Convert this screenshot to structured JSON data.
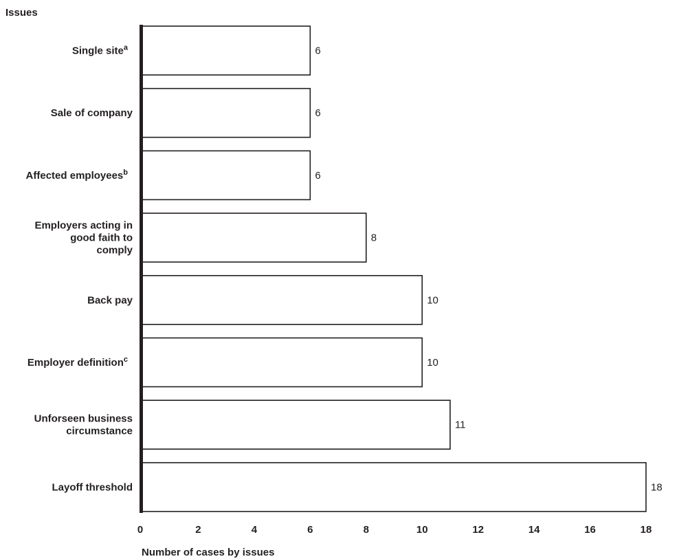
{
  "chart_data": {
    "type": "bar",
    "orientation": "horizontal",
    "title": "Issues",
    "xlabel": "Number of cases by issues",
    "ylabel": "",
    "xlim": [
      0,
      18
    ],
    "xticks": [
      "0",
      "2",
      "4",
      "6",
      "8",
      "10",
      "12",
      "14",
      "16",
      "18"
    ],
    "grid": false,
    "categories": [
      {
        "lines": [
          "Single site"
        ],
        "sup": "a"
      },
      {
        "lines": [
          "Sale of company"
        ],
        "sup": ""
      },
      {
        "lines": [
          "Affected employees"
        ],
        "sup": "b"
      },
      {
        "lines": [
          "Employers acting in",
          "good faith to",
          "comply"
        ],
        "sup": ""
      },
      {
        "lines": [
          "Back pay"
        ],
        "sup": ""
      },
      {
        "lines": [
          "Employer definition"
        ],
        "sup": "c"
      },
      {
        "lines": [
          "Unforseen business",
          "circumstance"
        ],
        "sup": ""
      },
      {
        "lines": [
          "Layoff threshold"
        ],
        "sup": ""
      }
    ],
    "values": [
      6,
      6,
      6,
      8,
      10,
      10,
      11,
      18
    ],
    "data_labels": [
      "6",
      "6",
      "6",
      "8",
      "10",
      "10",
      "11",
      "18"
    ],
    "colors": {
      "bar_fill": "#ffffff",
      "bar_stroke": "#231f20",
      "axis": "#231f20",
      "text": "#231f20"
    }
  }
}
